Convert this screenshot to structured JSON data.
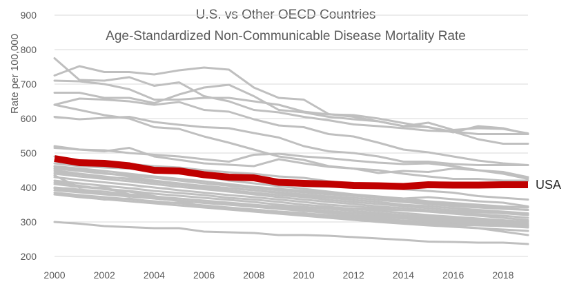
{
  "chart_data": {
    "type": "line",
    "title_line1": "U.S. vs Other OECD Countries",
    "title_line2": "Age-Standardized Non-Communicable Disease Mortality Rate",
    "ylabel": "Rate per 100,000",
    "xlabel": "",
    "ylim": [
      200,
      900
    ],
    "xlim": [
      2000,
      2019
    ],
    "y_ticks": [
      "200",
      "300",
      "400",
      "500",
      "600",
      "700",
      "800",
      "900"
    ],
    "x_ticks": [
      "2000",
      "2002",
      "2004",
      "2006",
      "2008",
      "2010",
      "2012",
      "2014",
      "2016",
      "2018"
    ],
    "grid": "horizontal",
    "x": [
      2000,
      2001,
      2002,
      2003,
      2004,
      2005,
      2006,
      2007,
      2008,
      2009,
      2010,
      2011,
      2012,
      2013,
      2014,
      2015,
      2016,
      2017,
      2018,
      2019
    ],
    "highlight": {
      "name": "USA",
      "color": "#c00000",
      "values": [
        484,
        472,
        470,
        463,
        450,
        448,
        437,
        430,
        428,
        415,
        412,
        410,
        406,
        405,
        403,
        408,
        407,
        407,
        408,
        408
      ]
    },
    "other_color": "#bfbfbf",
    "other_series": [
      [
        775,
        712,
        710,
        720,
        695,
        705,
        665,
        650,
        625,
        618,
        605,
        595,
        583,
        578,
        572,
        565,
        562,
        555,
        555,
        555
      ],
      [
        725,
        752,
        735,
        735,
        728,
        740,
        748,
        742,
        690,
        660,
        655,
        613,
        605,
        592,
        578,
        588,
        567,
        572,
        570,
        557
      ],
      [
        710,
        708,
        700,
        685,
        655,
        655,
        660,
        660,
        650,
        640,
        620,
        612,
        610,
        600,
        587,
        575,
        562,
        540,
        527,
        527
      ],
      [
        675,
        675,
        660,
        660,
        645,
        670,
        690,
        698,
        665,
        625,
        618,
        605,
        598,
        592,
        578,
        575,
        560,
        578,
        572,
        555
      ],
      [
        640,
        658,
        655,
        650,
        640,
        648,
        625,
        620,
        598,
        580,
        575,
        555,
        548,
        530,
        510,
        502,
        490,
        478,
        470,
        465
      ],
      [
        640,
        625,
        610,
        600,
        575,
        570,
        548,
        530,
        510,
        490,
        480,
        462,
        455,
        450,
        440,
        432,
        425,
        425,
        420,
        420
      ],
      [
        605,
        598,
        602,
        605,
        590,
        582,
        575,
        572,
        558,
        545,
        520,
        505,
        500,
        490,
        475,
        475,
        468,
        465,
        465,
        465
      ],
      [
        520,
        510,
        508,
        500,
        495,
        490,
        482,
        475,
        495,
        498,
        490,
        485,
        478,
        472,
        468,
        470,
        462,
        450,
        445,
        430
      ],
      [
        515,
        510,
        505,
        515,
        490,
        480,
        470,
        466,
        462,
        482,
        470,
        460,
        455,
        442,
        448,
        445,
        455,
        450,
        440,
        425
      ],
      [
        490,
        478,
        470,
        468,
        462,
        458,
        450,
        444,
        440,
        432,
        428,
        418,
        410,
        400,
        395,
        390,
        385,
        375,
        370,
        365
      ],
      [
        470,
        462,
        458,
        455,
        448,
        442,
        432,
        420,
        412,
        404,
        396,
        388,
        380,
        374,
        368,
        360,
        355,
        350,
        345,
        342
      ],
      [
        460,
        450,
        442,
        432,
        420,
        410,
        405,
        398,
        392,
        384,
        376,
        370,
        364,
        358,
        350,
        346,
        340,
        335,
        330,
        325
      ],
      [
        450,
        440,
        432,
        424,
        416,
        408,
        400,
        392,
        385,
        378,
        372,
        364,
        358,
        352,
        346,
        340,
        334,
        330,
        325,
        320
      ],
      [
        440,
        432,
        425,
        418,
        410,
        402,
        395,
        388,
        380,
        372,
        365,
        358,
        352,
        345,
        340,
        334,
        328,
        322,
        318,
        312
      ],
      [
        430,
        422,
        415,
        408,
        400,
        392,
        385,
        378,
        372,
        365,
        358,
        350,
        345,
        340,
        334,
        330,
        324,
        318,
        312,
        305
      ],
      [
        420,
        412,
        405,
        398,
        390,
        384,
        378,
        370,
        365,
        358,
        350,
        344,
        338,
        332,
        326,
        320,
        315,
        310,
        305,
        300
      ],
      [
        410,
        402,
        396,
        390,
        382,
        376,
        370,
        364,
        358,
        350,
        344,
        338,
        332,
        326,
        320,
        315,
        310,
        305,
        300,
        295
      ],
      [
        400,
        394,
        388,
        380,
        374,
        368,
        362,
        356,
        350,
        344,
        338,
        332,
        326,
        320,
        315,
        310,
        305,
        300,
        295,
        290
      ],
      [
        392,
        386,
        380,
        374,
        368,
        362,
        355,
        350,
        344,
        338,
        332,
        326,
        320,
        315,
        310,
        305,
        300,
        296,
        292,
        288
      ],
      [
        385,
        378,
        372,
        366,
        360,
        354,
        348,
        342,
        336,
        330,
        325,
        320,
        315,
        310,
        304,
        300,
        296,
        292,
        288,
        284
      ],
      [
        380,
        372,
        366,
        360,
        354,
        348,
        342,
        336,
        330,
        324,
        318,
        312,
        306,
        300,
        295,
        290,
        286,
        282,
        278,
        274
      ],
      [
        462,
        455,
        448,
        440,
        432,
        425,
        418,
        410,
        402,
        396,
        390,
        384,
        378,
        372,
        368,
        372,
        366,
        360,
        356,
        345
      ],
      [
        455,
        448,
        440,
        436,
        428,
        420,
        412,
        405,
        398,
        392,
        386,
        380,
        376,
        370,
        362,
        356,
        350,
        346,
        340,
        335
      ],
      [
        445,
        438,
        430,
        426,
        420,
        412,
        404,
        398,
        392,
        386,
        380,
        374,
        370,
        364,
        358,
        352,
        346,
        342,
        338,
        335
      ],
      [
        435,
        400,
        400,
        380,
        368,
        362,
        356,
        352,
        348,
        345,
        342,
        340,
        338,
        336,
        334,
        332,
        330,
        328,
        326,
        322
      ],
      [
        415,
        405,
        395,
        388,
        375,
        360,
        345,
        338,
        332,
        328,
        322,
        318,
        312,
        304,
        300,
        296,
        292,
        290,
        288,
        285
      ],
      [
        398,
        390,
        382,
        376,
        370,
        362,
        356,
        350,
        346,
        340,
        334,
        330,
        326,
        322,
        318,
        312,
        305,
        300,
        295,
        292
      ],
      [
        300,
        295,
        288,
        285,
        282,
        282,
        272,
        270,
        268,
        262,
        262,
        260,
        256,
        252,
        248,
        243,
        242,
        240,
        240,
        236
      ],
      [
        380,
        375,
        365,
        368,
        358,
        355,
        345,
        340,
        336,
        330,
        326,
        315,
        312,
        305,
        300,
        295,
        288,
        282,
        272,
        262
      ]
    ]
  }
}
